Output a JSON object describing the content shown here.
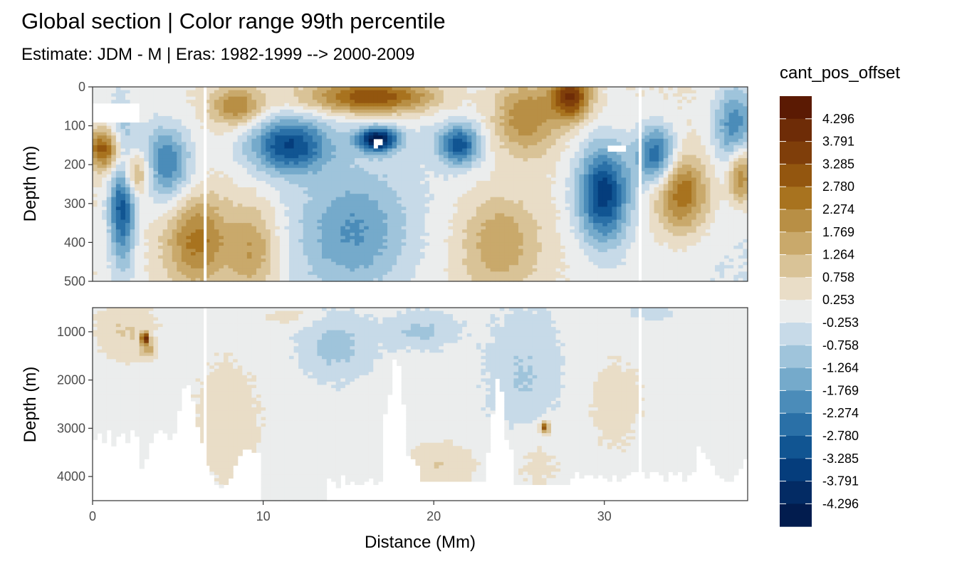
{
  "chart_data": {
    "type": "heatmap",
    "title": "Global section | Color range 99th percentile",
    "subtitle": "Estimate: JDM - M | Eras: 1982-1999 --> 2000-2009",
    "xlabel": "Distance (Mm)",
    "ylabel": "Depth (m)",
    "xlim": [
      0,
      38.4
    ],
    "x_ticks": [
      "0",
      "10",
      "20",
      "30"
    ],
    "panels": [
      {
        "name": "upper",
        "ylim": [
          0,
          500
        ],
        "y_ticks": [
          "0",
          "100",
          "200",
          "300",
          "400",
          "500"
        ]
      },
      {
        "name": "lower",
        "ylim": [
          500,
          4500
        ],
        "y_ticks": [
          "1000",
          "2000",
          "3000",
          "4000"
        ]
      }
    ],
    "legend": {
      "title": "cant_pos_offset",
      "placement": "right",
      "labels": [
        "4.296",
        "3.791",
        "3.285",
        "2.780",
        "2.274",
        "1.769",
        "1.264",
        "0.758",
        "0.253",
        "-0.253",
        "-0.758",
        "-1.264",
        "-1.769",
        "-2.274",
        "-2.780",
        "-3.285",
        "-3.791",
        "-4.296"
      ],
      "colors": [
        "#5b1a03",
        "#6e2c07",
        "#7f3e0a",
        "#93560f",
        "#a8731f",
        "#b88f45",
        "#c9a96b",
        "#d9c397",
        "#e9ddc7",
        "#ebeded",
        "#c7dae8",
        "#9fc4db",
        "#75aacb",
        "#4b8cb9",
        "#2a70a7",
        "#115592",
        "#053d7c",
        "#032b64",
        "#021c4e"
      ]
    },
    "grid": true
  }
}
